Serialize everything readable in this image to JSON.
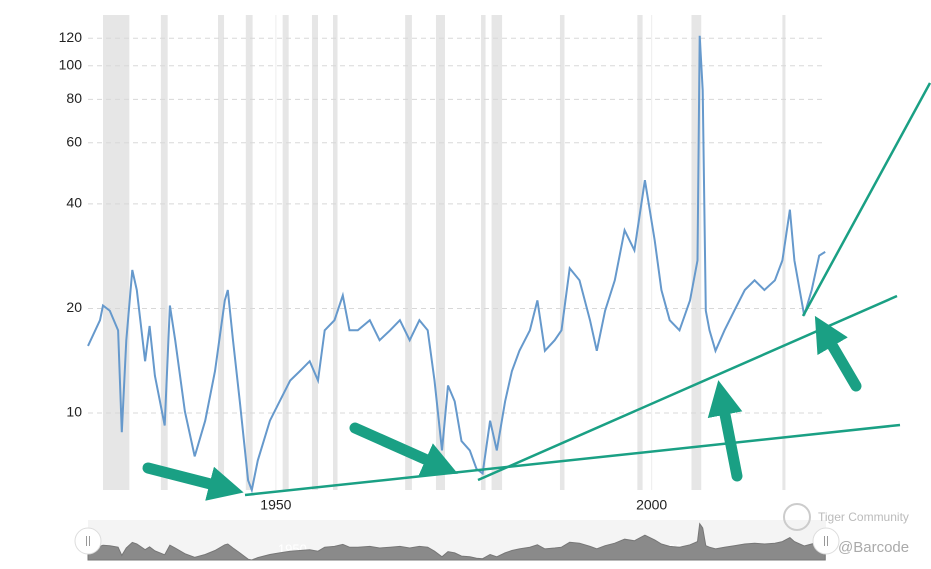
{
  "chart_data": {
    "type": "line",
    "x": [
      1925.0,
      1926.6,
      1927.0,
      1927.9,
      1929.0,
      1929.5,
      1930.1,
      1930.9,
      1931.5,
      1932.6,
      1933.2,
      1933.9,
      1935.2,
      1935.9,
      1936.6,
      1937.9,
      1939.2,
      1940.6,
      1941.9,
      1943.2,
      1943.6,
      1944.3,
      1945.2,
      1946.3,
      1946.8,
      1947.6,
      1949.2,
      1950.5,
      1951.9,
      1953.2,
      1954.5,
      1955.6,
      1956.5,
      1957.8,
      1958.9,
      1959.8,
      1960.9,
      1962.5,
      1963.8,
      1965.2,
      1966.5,
      1967.8,
      1969.1,
      1970.2,
      1971.1,
      1972.1,
      1972.9,
      1973.8,
      1974.7,
      1975.8,
      1976.7,
      1977.5,
      1978.5,
      1979.4,
      1980.5,
      1981.4,
      1982.4,
      1983.8,
      1984.8,
      1985.8,
      1987.1,
      1988.0,
      1989.1,
      1990.4,
      1991.8,
      1992.7,
      1993.8,
      1995.1,
      1996.4,
      1997.7,
      1999.1,
      2000.4,
      2001.3,
      2002.4,
      2003.7,
      2005.1,
      2006.1,
      2006.4,
      2006.8,
      2007.2,
      2007.7,
      2008.5,
      2009.7,
      2011.0,
      2012.4,
      2013.7,
      2015.0,
      2016.4,
      2017.4,
      2018.4,
      2019.0,
      2020.3,
      2021.3,
      2022.3,
      2023.1
    ],
    "series": [
      {
        "color": "#6699cc",
        "values": [
          15.6,
          18.5,
          20.4,
          19.7,
          17.3,
          8.8,
          16.2,
          25.8,
          22.6,
          14.1,
          17.8,
          12.8,
          9.2,
          20.4,
          16.2,
          10.1,
          7.5,
          9.5,
          13.2,
          21.1,
          22.6,
          16.2,
          10.8,
          6.4,
          6.0,
          7.3,
          9.5,
          10.8,
          12.4,
          13.2,
          14.1,
          12.4,
          17.3,
          18.5,
          21.8,
          17.3,
          17.3,
          18.5,
          16.2,
          17.3,
          18.5,
          16.2,
          18.5,
          17.3,
          12.4,
          7.8,
          12.0,
          10.8,
          8.3,
          7.8,
          6.9,
          6.7,
          9.5,
          7.8,
          10.8,
          13.2,
          15.1,
          17.3,
          21.1,
          15.1,
          16.2,
          17.3,
          26.1,
          24.1,
          18.5,
          15.1,
          19.7,
          24.1,
          33.6,
          29.4,
          46.8,
          31.4,
          22.6,
          18.5,
          17.3,
          21.1,
          27.5,
          122,
          85,
          19.7,
          17.3,
          15.1,
          17.3,
          19.7,
          22.6,
          24.1,
          22.6,
          24.1,
          27.5,
          38.5,
          27.5,
          19.1,
          22.6,
          28.4,
          29.1
        ]
      }
    ],
    "yscale": "log",
    "ylim": [
      6,
      140
    ],
    "yticks": [
      10,
      20,
      40,
      60,
      80,
      100,
      120
    ],
    "xlim": [
      1925,
      2023.2
    ],
    "xticks": [
      1950,
      2000
    ],
    "grid": true,
    "recessions": [
      [
        1927.0,
        1930.5
      ],
      [
        1934.7,
        1935.6
      ],
      [
        1942.3,
        1943.1
      ],
      [
        1946.0,
        1946.9
      ],
      [
        1950.9,
        1951.7
      ],
      [
        1954.8,
        1955.6
      ],
      [
        1957.6,
        1958.2
      ],
      [
        1967.2,
        1968.1
      ],
      [
        1971.3,
        1972.5
      ],
      [
        1977.3,
        1977.9
      ],
      [
        1978.7,
        1980.1
      ],
      [
        1987.8,
        1988.4
      ],
      [
        1998.1,
        1998.8
      ],
      [
        2005.3,
        2006.6
      ],
      [
        2017.4,
        2017.8
      ]
    ],
    "recession_color": "#e6e6e6"
  },
  "watermark": {
    "brand": "Tiger Community",
    "handle": "@Barcode"
  }
}
